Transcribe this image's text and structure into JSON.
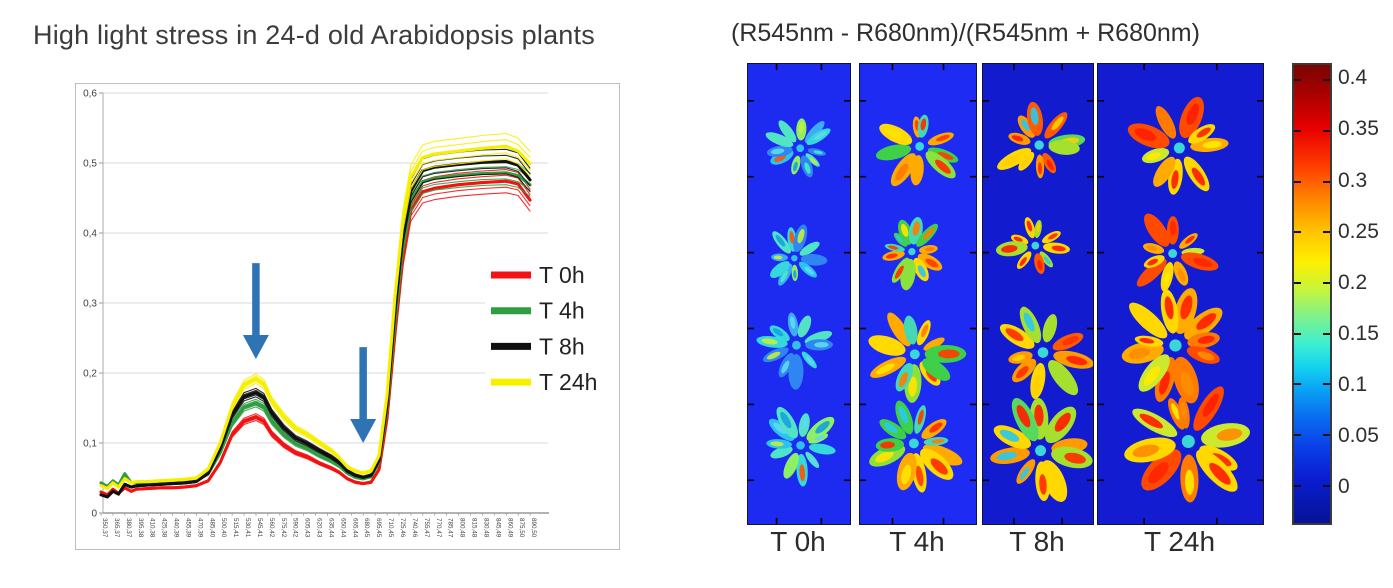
{
  "title": "High light stress in 24-d old Arabidopsis plants",
  "chart_data": [
    {
      "type": "line",
      "title": "",
      "xlabel": "",
      "ylabel": "",
      "x_range_nm": [
        350,
        890
      ],
      "ylim": [
        0,
        0.6
      ],
      "grid": true,
      "legend_position": "inside-right",
      "y_ticks": [
        {
          "label": "0,6",
          "value": 0.6
        },
        {
          "label": "0,5",
          "value": 0.5
        },
        {
          "label": "0,4",
          "value": 0.4
        },
        {
          "label": "0,3",
          "value": 0.3
        },
        {
          "label": "0,2",
          "value": 0.2
        },
        {
          "label": "0,1",
          "value": 0.1
        },
        {
          "label": "0",
          "value": 0.0
        }
      ],
      "x_tick_labels": [
        "350,37",
        "365,37",
        "380,37",
        "395,38",
        "410,38",
        "425,38",
        "440,39",
        "455,39",
        "470,39",
        "485,40",
        "500,40",
        "515,41",
        "530,41",
        "545,41",
        "560,42",
        "575,42",
        "590,42",
        "605,43",
        "620,43",
        "635,44",
        "650,44",
        "665,44",
        "680,45",
        "695,45",
        "710,45",
        "725,46",
        "740,46",
        "755,47",
        "770,47",
        "785,47",
        "800,48",
        "815,48",
        "830,48",
        "845,49",
        "860,49",
        "875,50",
        "890,50"
      ],
      "x": [
        350,
        358,
        365,
        372,
        380,
        388,
        395,
        410,
        425,
        440,
        455,
        470,
        485,
        500,
        515,
        530,
        545,
        555,
        565,
        580,
        595,
        610,
        625,
        640,
        650,
        660,
        670,
        680,
        690,
        700,
        710,
        720,
        730,
        740,
        755,
        770,
        800,
        830,
        860,
        875,
        890
      ],
      "series": [
        {
          "name": "T 0h",
          "color": "#f31111",
          "values": [
            0.03,
            0.026,
            0.034,
            0.028,
            0.036,
            0.031,
            0.034,
            0.035,
            0.036,
            0.036,
            0.037,
            0.039,
            0.046,
            0.072,
            0.112,
            0.131,
            0.137,
            0.131,
            0.113,
            0.097,
            0.086,
            0.08,
            0.071,
            0.064,
            0.058,
            0.049,
            0.044,
            0.042,
            0.044,
            0.062,
            0.135,
            0.255,
            0.365,
            0.432,
            0.459,
            0.464,
            0.469,
            0.472,
            0.474,
            0.47,
            0.447
          ]
        },
        {
          "name": "T 4h",
          "color": "#2f9e41",
          "values": [
            0.043,
            0.038,
            0.046,
            0.04,
            0.056,
            0.043,
            0.044,
            0.043,
            0.043,
            0.044,
            0.045,
            0.047,
            0.056,
            0.086,
            0.128,
            0.151,
            0.157,
            0.151,
            0.131,
            0.112,
            0.099,
            0.092,
            0.082,
            0.074,
            0.067,
            0.057,
            0.051,
            0.049,
            0.052,
            0.072,
            0.148,
            0.272,
            0.382,
            0.446,
            0.473,
            0.478,
            0.482,
            0.485,
            0.486,
            0.482,
            0.469
          ]
        },
        {
          "name": "T 8h",
          "color": "#101010",
          "values": [
            0.026,
            0.023,
            0.031,
            0.027,
            0.041,
            0.037,
            0.039,
            0.04,
            0.041,
            0.042,
            0.043,
            0.045,
            0.057,
            0.092,
            0.14,
            0.166,
            0.172,
            0.165,
            0.143,
            0.122,
            0.107,
            0.099,
            0.089,
            0.08,
            0.072,
            0.06,
            0.054,
            0.051,
            0.054,
            0.075,
            0.155,
            0.288,
            0.398,
            0.46,
            0.489,
            0.494,
            0.498,
            0.501,
            0.502,
            0.497,
            0.476
          ]
        },
        {
          "name": "T 24h",
          "color": "#f7ef00",
          "values": [
            0.039,
            0.035,
            0.043,
            0.037,
            0.049,
            0.043,
            0.045,
            0.045,
            0.046,
            0.047,
            0.048,
            0.05,
            0.063,
            0.1,
            0.152,
            0.183,
            0.192,
            0.184,
            0.16,
            0.138,
            0.121,
            0.112,
            0.1,
            0.089,
            0.079,
            0.066,
            0.06,
            0.057,
            0.06,
            0.082,
            0.168,
            0.308,
            0.418,
            0.48,
            0.508,
            0.513,
            0.517,
            0.521,
            0.524,
            0.517,
            0.499
          ]
        }
      ],
      "annotations": [
        {
          "type": "down-arrow",
          "x_nm": 545,
          "y_from": 0.357,
          "y_to": 0.22,
          "color": "#2e74b5"
        },
        {
          "type": "down-arrow",
          "x_nm": 680,
          "y_from": 0.237,
          "y_to": 0.1,
          "color": "#2e74b5"
        }
      ]
    },
    {
      "type": "heatmap",
      "title": "(R545nm - R680nm)/(R545nm + R680nm)",
      "categories": [
        "T 0h",
        "T 4h",
        "T 8h",
        "T 24h"
      ],
      "panels": [
        {
          "label": "T 0h",
          "bg": "#1d2af0",
          "center": "#33c8f0",
          "accent": "#ff5400",
          "accent_chance": 0.07,
          "leaf_colors": [
            "#2bc4f2",
            "#35d8dc",
            "#3dacf5",
            "#52e2c4",
            "#8df064",
            "#2f86f2"
          ],
          "core_colors": [
            "#18a2e2",
            "#48e8cc",
            "#c3ee3f",
            "#60d8f0"
          ],
          "radii": [
            30,
            25,
            34,
            33
          ]
        },
        {
          "label": "T 4h",
          "bg": "#1e2bf2",
          "center": "#3ce0d8",
          "accent": "#ff2d00",
          "accent_chance": 0.2,
          "leaf_colors": [
            "#3ed048",
            "#8ce23c",
            "#ffd900",
            "#ffaa00",
            "#44d8b4"
          ],
          "core_colors": [
            "#ff7b00",
            "#ffe400",
            "#2cc8ea",
            "#ff3c00"
          ],
          "radii": [
            34,
            28,
            38,
            38
          ]
        },
        {
          "label": "T 8h",
          "bg": "#131bce",
          "center": "#3ce0d8",
          "accent": "#ff1e00",
          "accent_chance": 0.3,
          "leaf_colors": [
            "#a6e02e",
            "#ffd800",
            "#ff9b00",
            "#ff5a00",
            "#58d85c"
          ],
          "core_colors": [
            "#ff2f00",
            "#ffcf00",
            "#2cc8ea"
          ],
          "radii": [
            36,
            30,
            41,
            42
          ]
        },
        {
          "label": "T 24h",
          "bg": "#141cd2",
          "center": "#3ce0d8",
          "accent": "#ff1e00",
          "accent_chance": 0.35,
          "leaf_colors": [
            "#ffd800",
            "#ffab00",
            "#ff7b00",
            "#cde92e",
            "#ff4b00"
          ],
          "core_colors": [
            "#ff2500",
            "#ffe900",
            "#ff8c00"
          ],
          "radii": [
            42,
            34,
            47,
            50
          ]
        }
      ],
      "colorbar": {
        "tick_labels": [
          "0.4",
          "0.35",
          "0.3",
          "0.25",
          "0.2",
          "0.15",
          "0.1",
          "0.05",
          "0"
        ],
        "range": [
          -0.05,
          0.42
        ],
        "gradient": [
          {
            "c": "#7a0403",
            "p": 0
          },
          {
            "c": "#b00000",
            "p": 7
          },
          {
            "c": "#e80000",
            "p": 14
          },
          {
            "c": "#ff3c00",
            "p": 22
          },
          {
            "c": "#ff8c00",
            "p": 30
          },
          {
            "c": "#ffc800",
            "p": 37
          },
          {
            "c": "#fdf000",
            "p": 43
          },
          {
            "c": "#c8f43c",
            "p": 49
          },
          {
            "c": "#7df28c",
            "p": 55
          },
          {
            "c": "#3ceed2",
            "p": 61
          },
          {
            "c": "#14d2f0",
            "p": 66
          },
          {
            "c": "#0aa0f5",
            "p": 71
          },
          {
            "c": "#0a6cf0",
            "p": 77
          },
          {
            "c": "#0a3ce6",
            "p": 84
          },
          {
            "c": "#0a1ed2",
            "p": 90
          },
          {
            "c": "#071396",
            "p": 100
          }
        ]
      }
    }
  ]
}
